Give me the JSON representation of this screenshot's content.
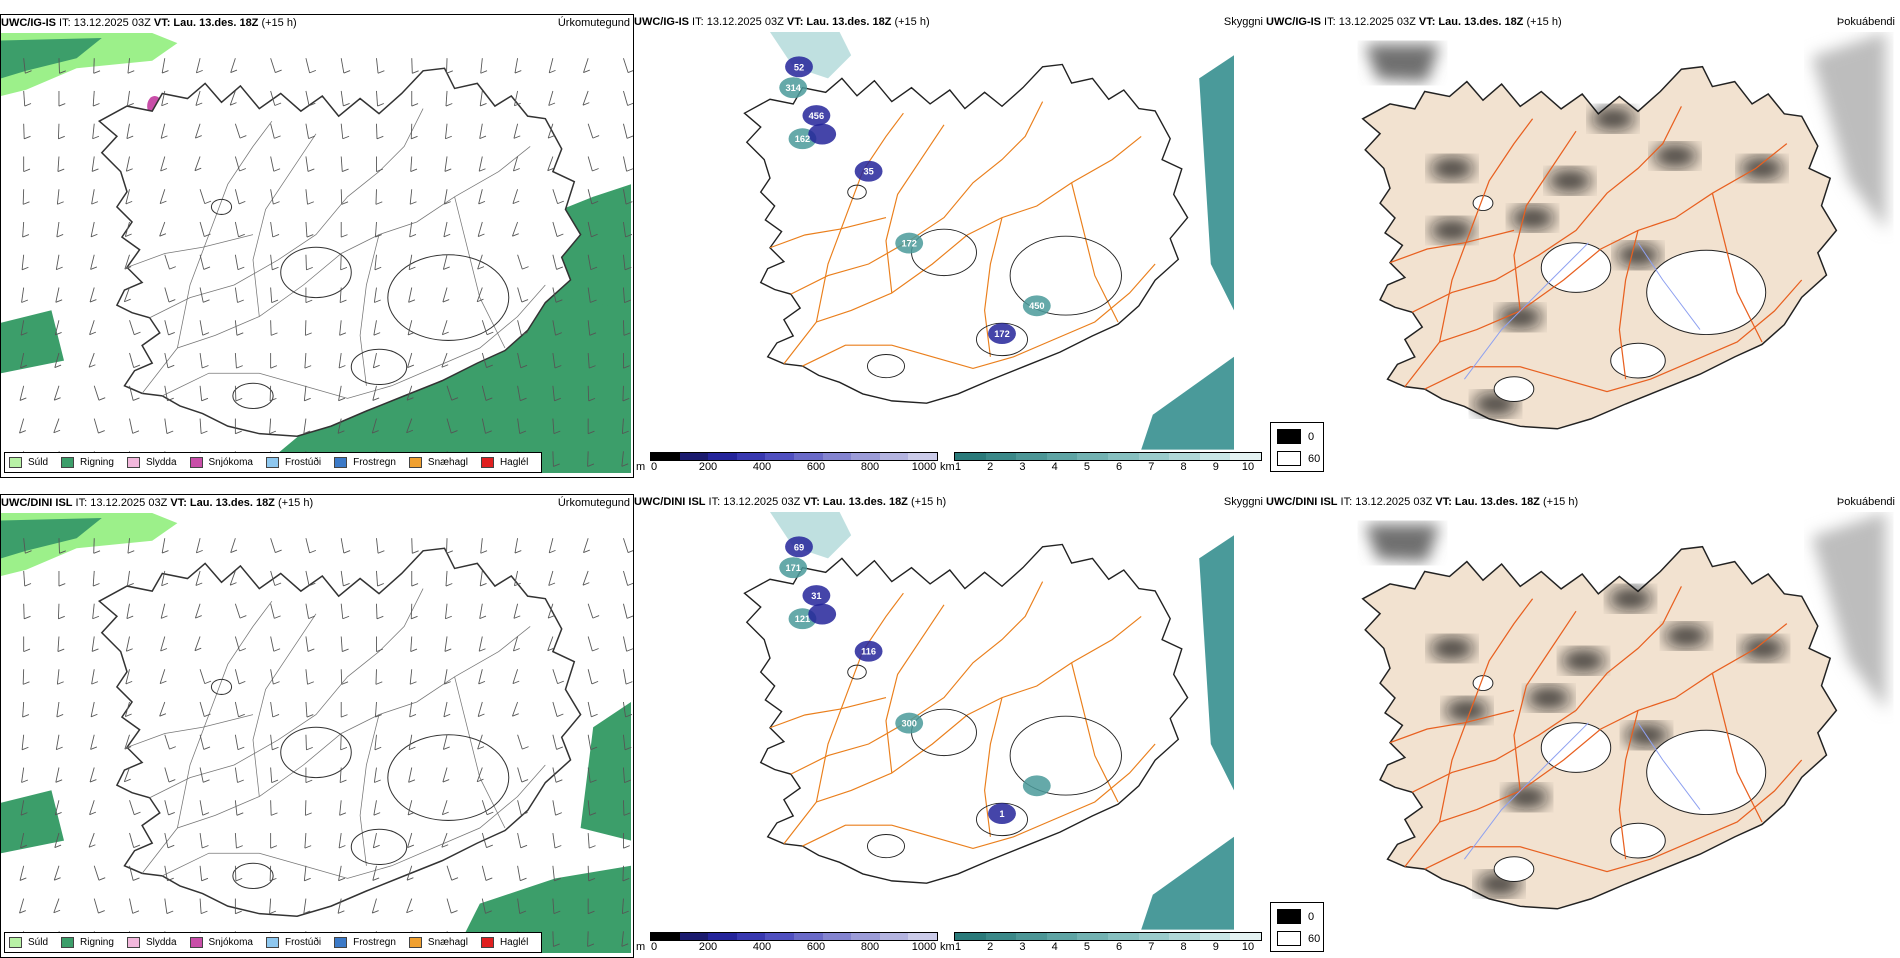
{
  "rows": [
    {
      "model": "UWC/IG-IS",
      "model_short": "UWC/IG-IS",
      "precip_title": "Úrkomutegund",
      "vis_title": "Skyggni",
      "fog_title": "Þokuábendi",
      "it_label": "IT:",
      "it_value": "13.12.2025 03Z",
      "vt_label": "VT:",
      "vt_value": "Lau. 13.des. 18Z",
      "lead": "(+15 h)",
      "vis_values": [
        "52",
        "314",
        "456",
        "162",
        "35",
        "172",
        "172",
        "450"
      ]
    },
    {
      "model": "UWC/DINI ISL",
      "model_short": "UWC/DINI ISL",
      "precip_title": "Úrkomutegund",
      "vis_title": "Skyggni",
      "fog_title": "Þokuábendi",
      "it_label": "IT:",
      "it_value": "13.12.2025 03Z",
      "vt_label": "VT:",
      "vt_value": "Lau. 13.des. 18Z",
      "lead": "(+15 h)",
      "vis_values": [
        "69",
        "171",
        "31",
        "121",
        "116",
        "300",
        "1"
      ]
    }
  ],
  "precip_legend": [
    {
      "label": "Súld",
      "color": "#b8f2a6"
    },
    {
      "label": "Rigning",
      "color": "#3c9e6a"
    },
    {
      "label": "Slydda",
      "color": "#f2b8dc"
    },
    {
      "label": "Snjókoma",
      "color": "#c84ea8"
    },
    {
      "label": "Frostúði",
      "color": "#8ec8f0"
    },
    {
      "label": "Frostregn",
      "color": "#3c7ac8"
    },
    {
      "label": "Snæhagl",
      "color": "#f0a030"
    },
    {
      "label": "Haglél",
      "color": "#e02020"
    }
  ],
  "vis_scale_m": {
    "unit": "m",
    "ticks": [
      "0",
      "200",
      "400",
      "600",
      "800",
      "1000"
    ],
    "colors": [
      "#000000",
      "#1a1a6e",
      "#24249a",
      "#3838b0",
      "#5050c0",
      "#6a6ac8",
      "#8484d0",
      "#9c9cd8",
      "#b4b4e0",
      "#ccccea"
    ]
  },
  "vis_scale_km": {
    "unit": "km",
    "ticks": [
      "1",
      "2",
      "3",
      "4",
      "5",
      "6",
      "7",
      "8",
      "9",
      "10"
    ],
    "colors": [
      "#2a7a7a",
      "#3a8888",
      "#4c9696",
      "#5ea4a4",
      "#72b2b2",
      "#86c0c0",
      "#9acccc",
      "#b0d8d8",
      "#c8e6e6",
      "#e4f2f2"
    ]
  },
  "fog_legend": [
    {
      "label": "0",
      "color": "#000000"
    },
    {
      "label": "60",
      "color": "#ffffff"
    }
  ],
  "map_colors": {
    "land_fog": "#f2e2d0",
    "roads": "#e86020",
    "roads_vis": "#ea7f1c",
    "rivers": "#8ea0f0",
    "rain": "#3c9e6a",
    "drizzle": "#9cf08a",
    "snow": "#c84ea8",
    "vis_teal": "#4a9a9a",
    "vis_blue": "#24249a"
  }
}
